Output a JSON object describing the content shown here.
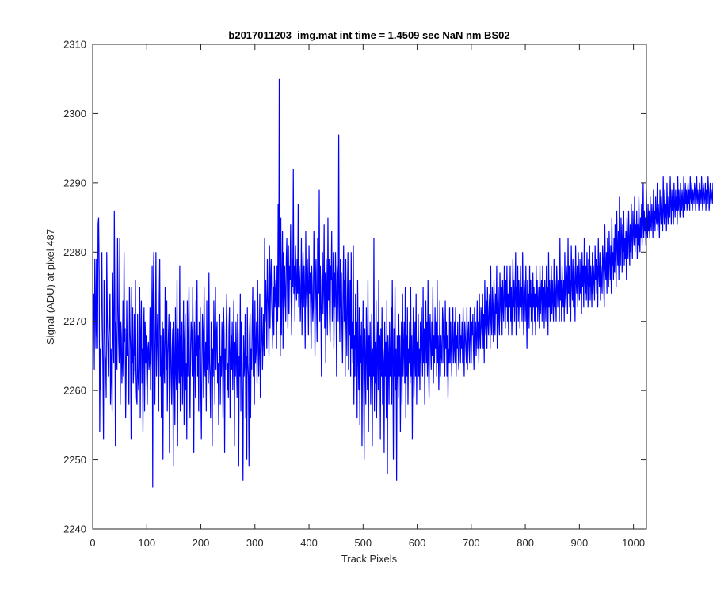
{
  "chart_data": {
    "type": "line",
    "title": "b2017011203_img.mat int time = 1.4509 sec  NaN nm BS02",
    "xlabel": "Track Pixels",
    "ylabel": "Signal (ADU) at pixel 487",
    "xlim": [
      0,
      1024
    ],
    "ylim": [
      2240,
      2310
    ],
    "xticks": [
      0,
      100,
      200,
      300,
      400,
      500,
      600,
      700,
      800,
      900,
      1000
    ],
    "yticks": [
      2240,
      2250,
      2260,
      2270,
      2280,
      2290,
      2300,
      2310
    ],
    "grid": false,
    "line_color": "#0000ff",
    "series": [
      {
        "x_start": 1,
        "x_step": 1,
        "values": [
          2270,
          2274,
          2263,
          2279,
          2272,
          2266,
          2279,
          2268,
          2266,
          2284,
          2285,
          2277,
          2254,
          2266,
          2260,
          2273,
          2280,
          2269,
          2262,
          2253,
          2276,
          2271,
          2265,
          2264,
          2259,
          2280,
          2271,
          2267,
          2262,
          2268,
          2270,
          2274,
          2258,
          2266,
          2262,
          2257,
          2277,
          2268,
          2264,
          2286,
          2274,
          2252,
          2270,
          2265,
          2263,
          2282,
          2273,
          2267,
          2264,
          2282,
          2258,
          2270,
          2268,
          2261,
          2264,
          2273,
          2262,
          2280,
          2267,
          2269,
          2256,
          2263,
          2273,
          2265,
          2268,
          2262,
          2258,
          2275,
          2269,
          2266,
          2253,
          2275,
          2264,
          2272,
          2261,
          2263,
          2271,
          2265,
          2276,
          2263,
          2259,
          2258,
          2271,
          2262,
          2260,
          2264,
          2275,
          2256,
          2268,
          2273,
          2261,
          2266,
          2254,
          2268,
          2272,
          2257,
          2270,
          2264,
          2268,
          2262,
          2258,
          2266,
          2267,
          2263,
          2264,
          2272,
          2260,
          2265,
          2268,
          2278,
          2246,
          2274,
          2280,
          2266,
          2258,
          2269,
          2280,
          2262,
          2267,
          2271,
          2264,
          2257,
          2273,
          2279,
          2262,
          2268,
          2256,
          2264,
          2270,
          2250,
          2269,
          2264,
          2261,
          2275,
          2268,
          2263,
          2273,
          2257,
          2265,
          2268,
          2271,
          2251,
          2264,
          2270,
          2262,
          2258,
          2266,
          2269,
          2249,
          2270,
          2264,
          2255,
          2272,
          2263,
          2260,
          2276,
          2252,
          2269,
          2265,
          2261,
          2278,
          2257,
          2268,
          2262,
          2270,
          2258,
          2264,
          2273,
          2255,
          2267,
          2271,
          2260,
          2264,
          2253,
          2273,
          2262,
          2267,
          2275,
          2261,
          2256,
          2266,
          2270,
          2268,
          2262,
          2275,
          2264,
          2251,
          2270,
          2266,
          2259,
          2273,
          2265,
          2276,
          2262,
          2268,
          2257,
          2270,
          2266,
          2272,
          2260,
          2253,
          2264,
          2271,
          2268,
          2259,
          2275,
          2264,
          2262,
          2267,
          2257,
          2273,
          2263,
          2268,
          2261,
          2277,
          2264,
          2262,
          2256,
          2270,
          2269,
          2252,
          2266,
          2262,
          2273,
          2267,
          2258,
          2275,
          2263,
          2268,
          2270,
          2261,
          2264,
          2255,
          2268,
          2271,
          2258,
          2265,
          2262,
          2270,
          2266,
          2256,
          2272,
          2268,
          2251,
          2266,
          2263,
          2270,
          2274,
          2260,
          2264,
          2259,
          2269,
          2272,
          2256,
          2265,
          2268,
          2263,
          2270,
          2260,
          2266,
          2273,
          2252,
          2267,
          2262,
          2270,
          2264,
          2259,
          2271,
          2268,
          2249,
          2265,
          2262,
          2274,
          2257,
          2270,
          2266,
          2258,
          2247,
          2268,
          2262,
          2264,
          2271,
          2256,
          2265,
          2250,
          2272,
          2264,
          2262,
          2249,
          2268,
          2271,
          2256,
          2266,
          2263,
          2270,
          2275,
          2262,
          2268,
          2258,
          2273,
          2264,
          2266,
          2270,
          2261,
          2276,
          2268,
          2262,
          2266,
          2274,
          2259,
          2265,
          2268,
          2272,
          2263,
          2267,
          2271,
          2265,
          2282,
          2270,
          2276,
          2272,
          2266,
          2279,
          2274,
          2271,
          2265,
          2281,
          2269,
          2276,
          2279,
          2273,
          2270,
          2266,
          2275,
          2268,
          2278,
          2272,
          2274,
          2276,
          2266,
          2278,
          2270,
          2287,
          2272,
          2305,
          2280,
          2265,
          2285,
          2268,
          2275,
          2283,
          2266,
          2280,
          2272,
          2278,
          2274,
          2270,
          2279,
          2282,
          2275,
          2269,
          2281,
          2271,
          2278,
          2276,
          2284,
          2273,
          2268,
          2279,
          2275,
          2292,
          2274,
          2278,
          2270,
          2281,
          2276,
          2273,
          2279,
          2274,
          2287,
          2272,
          2278,
          2276,
          2270,
          2274,
          2282,
          2268,
          2276,
          2280,
          2272,
          2278,
          2274,
          2266,
          2283,
          2275,
          2272,
          2279,
          2275,
          2268,
          2281,
          2274,
          2277,
          2272,
          2266,
          2278,
          2275,
          2270,
          2272,
          2283,
          2278,
          2265,
          2275,
          2279,
          2272,
          2267,
          2282,
          2276,
          2274,
          2289,
          2270,
          2278,
          2272,
          2262,
          2276,
          2280,
          2271,
          2275,
          2284,
          2269,
          2277,
          2264,
          2279,
          2274,
          2268,
          2285,
          2273,
          2279,
          2271,
          2267,
          2278,
          2276,
          2283,
          2270,
          2274,
          2280,
          2266,
          2277,
          2272,
          2280,
          2274,
          2262,
          2278,
          2276,
          2270,
          2297,
          2274,
          2267,
          2279,
          2272,
          2277,
          2269,
          2264,
          2274,
          2281,
          2270,
          2276,
          2262,
          2279,
          2271,
          2265,
          2273,
          2280,
          2263,
          2272,
          2268,
          2276,
          2262,
          2280,
          2266,
          2270,
          2264,
          2281,
          2258,
          2268,
          2262,
          2274,
          2266,
          2270,
          2256,
          2276,
          2265,
          2260,
          2272,
          2255,
          2268,
          2264,
          2270,
          2252,
          2266,
          2273,
          2262,
          2250,
          2269,
          2264,
          2258,
          2272,
          2265,
          2260,
          2276,
          2254,
          2268,
          2262,
          2270,
          2258,
          2264,
          2271,
          2252,
          2266,
          2262,
          2282,
          2257,
          2267,
          2261,
          2273,
          2256,
          2265,
          2270,
          2260,
          2276,
          2263,
          2268,
          2253,
          2269,
          2262,
          2272,
          2258,
          2266,
          2264,
          2251,
          2270,
          2262,
          2267,
          2256,
          2273,
          2248,
          2268,
          2265,
          2258,
          2270,
          2262,
          2264,
          2272,
          2258,
          2276,
          2265,
          2250,
          2269,
          2262,
          2275,
          2260,
          2266,
          2247,
          2268,
          2264,
          2259,
          2271,
          2262,
          2268,
          2254,
          2264,
          2270,
          2258,
          2274,
          2262,
          2266,
          2270,
          2261,
          2275,
          2256,
          2268,
          2262,
          2272,
          2258,
          2266,
          2264,
          2270,
          2261,
          2275,
          2262,
          2268,
          2253,
          2266,
          2272,
          2259,
          2264,
          2270,
          2262,
          2274,
          2258,
          2267,
          2265,
          2271,
          2262,
          2266,
          2260,
          2270,
          2264,
          2272,
          2266,
          2262,
          2275,
          2264,
          2269,
          2258,
          2266,
          2273,
          2264,
          2270,
          2262,
          2276,
          2264,
          2259,
          2268,
          2271,
          2266,
          2263,
          2270,
          2265,
          2275,
          2261,
          2268,
          2264,
          2272,
          2266,
          2270,
          2262,
          2276,
          2264,
          2268,
          2260,
          2266,
          2273,
          2262,
          2268,
          2265,
          2264,
          2272,
          2270,
          2264,
          2268,
          2262,
          2273,
          2266,
          2270,
          2262,
          2268,
          2259,
          2266,
          2264,
          2272,
          2264,
          2270,
          2266,
          2262,
          2268,
          2272,
          2264,
          2266,
          2270,
          2264,
          2272,
          2262,
          2268,
          2266,
          2270,
          2265,
          2263,
          2268,
          2271,
          2264,
          2268,
          2266,
          2270,
          2264,
          2272,
          2266,
          2262,
          2270,
          2268,
          2266,
          2264,
          2272,
          2263,
          2268,
          2270,
          2266,
          2264,
          2272,
          2268,
          2264,
          2270,
          2268,
          2271,
          2266,
          2263,
          2272,
          2268,
          2270,
          2265,
          2268,
          2273,
          2266,
          2270,
          2264,
          2274,
          2268,
          2266,
          2272,
          2270,
          2268,
          2274,
          2266,
          2271,
          2264,
          2276,
          2270,
          2268,
          2273,
          2266,
          2275,
          2270,
          2268,
          2272,
          2274,
          2266,
          2278,
          2270,
          2268,
          2275,
          2272,
          2267,
          2276,
          2270,
          2268,
          2274,
          2271,
          2278,
          2266,
          2272,
          2275,
          2270,
          2268,
          2277,
          2273,
          2270,
          2275,
          2268,
          2276,
          2272,
          2270,
          2278,
          2274,
          2269,
          2276,
          2272,
          2278,
          2270,
          2274,
          2268,
          2276,
          2272,
          2278,
          2270,
          2275,
          2268,
          2273,
          2279,
          2272,
          2276,
          2270,
          2274,
          2280,
          2268,
          2275,
          2272,
          2278,
          2270,
          2276,
          2273,
          2269,
          2278,
          2272,
          2275,
          2270,
          2280,
          2273,
          2268,
          2276,
          2274,
          2270,
          2278,
          2272,
          2266,
          2276,
          2271,
          2274,
          2269,
          2278,
          2272,
          2276,
          2270,
          2274,
          2268,
          2277,
          2272,
          2275,
          2270,
          2274,
          2268,
          2278,
          2272,
          2276,
          2270,
          2273,
          2275,
          2269,
          2278,
          2271,
          2274,
          2276,
          2270,
          2278,
          2272,
          2275,
          2269,
          2276,
          2273,
          2270,
          2278,
          2272,
          2275,
          2268,
          2280,
          2272,
          2276,
          2270,
          2274,
          2278,
          2271,
          2276,
          2273,
          2270,
          2279,
          2272,
          2276,
          2274,
          2270,
          2278,
          2275,
          2272,
          2276,
          2274,
          2270,
          2282,
          2273,
          2276,
          2270,
          2278,
          2274,
          2272,
          2276,
          2270,
          2280,
          2274,
          2272,
          2278,
          2276,
          2271,
          2282,
          2274,
          2278,
          2272,
          2276,
          2270,
          2281,
          2276,
          2273,
          2279,
          2272,
          2278,
          2275,
          2270,
          2281,
          2276,
          2274,
          2278,
          2272,
          2280,
          2276,
          2273,
          2279,
          2274,
          2277,
          2271,
          2280,
          2275,
          2278,
          2272,
          2282,
          2276,
          2274,
          2278,
          2273,
          2280,
          2276,
          2272,
          2279,
          2275,
          2281,
          2273,
          2278,
          2276,
          2272,
          2280,
          2274,
          2278,
          2276,
          2273,
          2281,
          2276,
          2279,
          2274,
          2278,
          2272,
          2282,
          2277,
          2275,
          2280,
          2273,
          2278,
          2276,
          2274,
          2281,
          2279,
          2275,
          2272,
          2284,
          2278,
          2276,
          2280,
          2274,
          2282,
          2278,
          2275,
          2283,
          2279,
          2276,
          2281,
          2274,
          2285,
          2278,
          2280,
          2276,
          2282,
          2277,
          2284,
          2279,
          2275,
          2286,
          2281,
          2278,
          2283,
          2276,
          2288,
          2280,
          2278,
          2285,
          2282,
          2277,
          2284,
          2280,
          2286,
          2278,
          2282,
          2279,
          2283,
          2276,
          2285,
          2281,
          2279,
          2286,
          2282,
          2278,
          2284,
          2280,
          2287,
          2282,
          2279,
          2286,
          2283,
          2281,
          2288,
          2280,
          2284,
          2282,
          2286,
          2279,
          2284,
          2281,
          2288,
          2283,
          2280,
          2285,
          2282,
          2287,
          2281,
          2284,
          2290,
          2282,
          2286,
          2283,
          2285,
          2281,
          2289,
          2284,
          2282,
          2287,
          2283,
          2286,
          2282,
          2288,
          2284,
          2283,
          2287,
          2285,
          2282,
          2289,
          2284,
          2286,
          2283,
          2288,
          2285,
          2284,
          2290,
          2283,
          2287,
          2285,
          2282,
          2289,
          2286,
          2284,
          2288,
          2285,
          2283,
          2291,
          2286,
          2284,
          2289,
          2285,
          2287,
          2283,
          2290,
          2286,
          2284,
          2288,
          2286,
          2285,
          2291,
          2287,
          2284,
          2289,
          2286,
          2288,
          2284,
          2290,
          2287,
          2285,
          2289,
          2286,
          2288,
          2284,
          2291,
          2286,
          2289,
          2287,
          2285,
          2290,
          2288,
          2286,
          2289,
          2287,
          2285,
          2291,
          2288,
          2286,
          2290,
          2287,
          2289,
          2286,
          2288,
          2290,
          2287,
          2289,
          2286,
          2291,
          2288,
          2287,
          2290,
          2286,
          2289,
          2288,
          2287,
          2290,
          2289,
          2286,
          2288,
          2291,
          2287,
          2289,
          2288,
          2286,
          2290,
          2288,
          2289,
          2287,
          2291,
          2288,
          2286,
          2290,
          2289,
          2287,
          2288,
          2290,
          2286,
          2289,
          2288,
          2287,
          2291,
          2289,
          2286,
          2288,
          2290,
          2287,
          2289,
          2288,
          2287,
          2290,
          2289,
          2286,
          2291,
          2288,
          2287,
          2289,
          2290
        ]
      }
    ]
  }
}
